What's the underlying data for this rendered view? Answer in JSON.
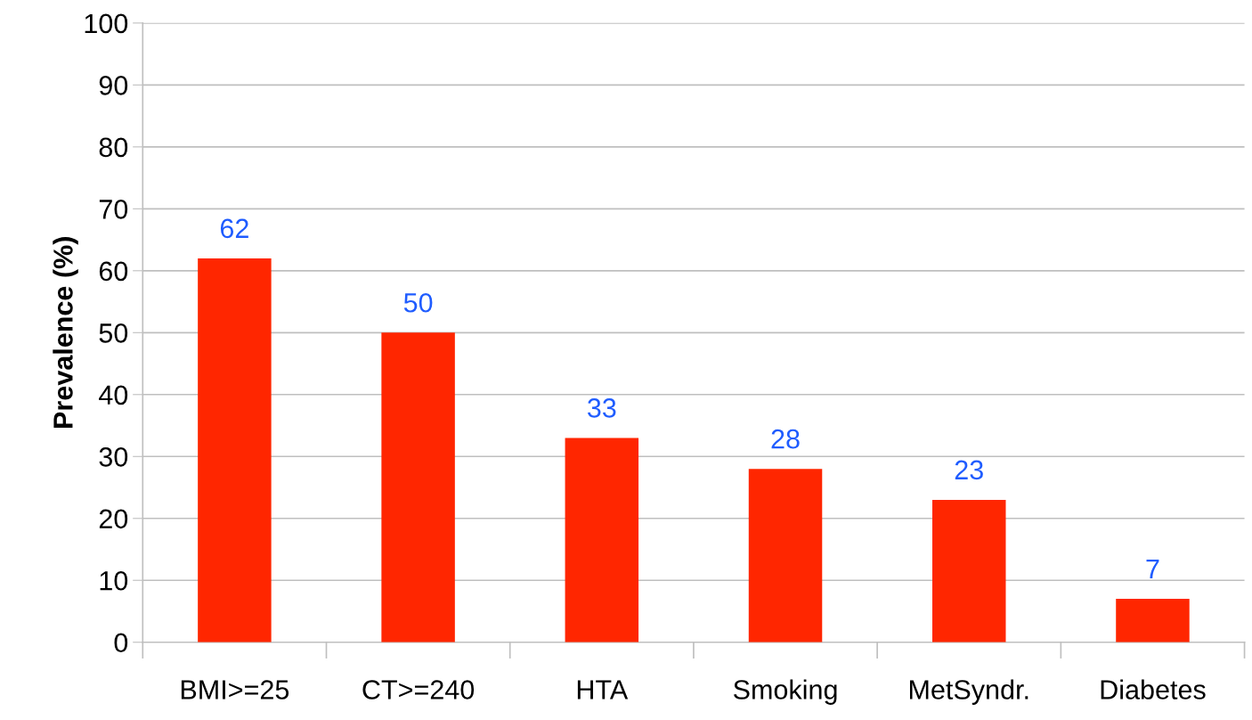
{
  "chart_data": {
    "type": "bar",
    "ylabel": "Prevalence (%)",
    "categories": [
      "BMI>=25",
      "CT>=240",
      "HTA",
      "Smoking",
      "MetSyndr.",
      "Diabetes"
    ],
    "values": [
      62,
      50,
      33,
      28,
      23,
      7
    ],
    "color": "#ff2600",
    "ylim": [
      0,
      100
    ],
    "yticks": [
      0,
      10,
      20,
      30,
      40,
      50,
      60,
      70,
      80,
      90,
      100
    ],
    "grid": "y",
    "data_labels": true
  }
}
